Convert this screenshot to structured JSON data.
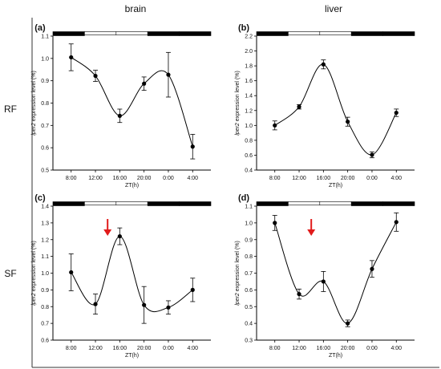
{
  "column_titles": [
    "brain",
    "liver"
  ],
  "row_labels": [
    "RF",
    "SF"
  ],
  "chart_data": [
    {
      "type": "line",
      "panel_label": "(a)",
      "xlabel": "ZT(h)",
      "ylabel_gene": "lper2",
      "ylabel_rest": " expression level (%)",
      "categories": [
        "8:00",
        "12:00",
        "16:00",
        "20:00",
        "0:00",
        "4:00"
      ],
      "values": [
        1.005,
        0.922,
        0.743,
        0.887,
        0.927,
        0.605
      ],
      "errors": [
        0.06,
        0.025,
        0.03,
        0.03,
        0.1,
        0.055
      ],
      "ylim": [
        0.5,
        1.1
      ],
      "yticks": [
        "0.5",
        "0.6",
        "0.7",
        "0.8",
        "0.9",
        "1.0",
        "1.1"
      ],
      "yticks_values": [
        0.5,
        0.6,
        0.7,
        0.8,
        0.9,
        1.0,
        1.1
      ],
      "light_bar": [
        "dark",
        "light",
        "light",
        "dark",
        "dark"
      ],
      "grid": false
    },
    {
      "type": "line",
      "panel_label": "(b)",
      "xlabel": "ZT(h)",
      "ylabel_gene": "lper2",
      "ylabel_rest": " expression level (%)",
      "categories": [
        "8:00",
        "12:00",
        "16:00",
        "20:00",
        "0:00",
        "4:00"
      ],
      "values": [
        1.0,
        1.25,
        1.82,
        1.05,
        0.605,
        1.17
      ],
      "errors": [
        0.06,
        0.03,
        0.06,
        0.06,
        0.04,
        0.05
      ],
      "ylim": [
        0.4,
        2.2
      ],
      "yticks": [
        "0.4",
        "0.6",
        "0.8",
        "1.0",
        "1.2",
        "1.4",
        "1.6",
        "1.8",
        "2.0",
        "2.2"
      ],
      "yticks_values": [
        0.4,
        0.6,
        0.8,
        1.0,
        1.2,
        1.4,
        1.6,
        1.8,
        2.0,
        2.2
      ],
      "light_bar": [
        "dark",
        "light",
        "light",
        "dark",
        "dark"
      ],
      "grid": false
    },
    {
      "type": "line",
      "panel_label": "(c)",
      "xlabel": "ZT(h)",
      "ylabel_gene": "lper2",
      "ylabel_rest": " expression level (%)",
      "categories": [
        "8:00",
        "12:00",
        "16:00",
        "20:00",
        "0:00",
        "4:00"
      ],
      "values": [
        1.005,
        0.815,
        1.22,
        0.81,
        0.795,
        0.9
      ],
      "errors": [
        0.11,
        0.06,
        0.05,
        0.11,
        0.04,
        0.07
      ],
      "ylim": [
        0.6,
        1.4
      ],
      "yticks": [
        "0.6",
        "0.7",
        "0.8",
        "0.9",
        "1.0",
        "1.1",
        "1.2",
        "1.3",
        "1.4"
      ],
      "yticks_values": [
        0.6,
        0.7,
        0.8,
        0.9,
        1.0,
        1.1,
        1.2,
        1.3,
        1.4
      ],
      "light_bar": [
        "dark",
        "light",
        "light",
        "dark",
        "dark"
      ],
      "arrow_at": "14:00",
      "arrow_color": "#e11b1b",
      "grid": false
    },
    {
      "type": "line",
      "panel_label": "(d)",
      "xlabel": "ZT(h)",
      "ylabel_gene": "lper2",
      "ylabel_rest": " expression level (%)",
      "categories": [
        "8:00",
        "12:00",
        "16:00",
        "20:00",
        "0:00",
        "4:00"
      ],
      "values": [
        1.0,
        0.575,
        0.65,
        0.4,
        0.725,
        1.005
      ],
      "errors": [
        0.045,
        0.03,
        0.06,
        0.02,
        0.05,
        0.055
      ],
      "ylim": [
        0.3,
        1.1
      ],
      "yticks": [
        "0.3",
        "0.4",
        "0.5",
        "0.6",
        "0.7",
        "0.8",
        "0.9",
        "1.0",
        "1.1"
      ],
      "yticks_values": [
        0.3,
        0.4,
        0.5,
        0.6,
        0.7,
        0.8,
        0.9,
        1.0,
        1.1
      ],
      "light_bar": [
        "dark",
        "light",
        "light",
        "dark",
        "dark"
      ],
      "arrow_at": "14:00",
      "arrow_color": "#e11b1b",
      "grid": false
    }
  ]
}
